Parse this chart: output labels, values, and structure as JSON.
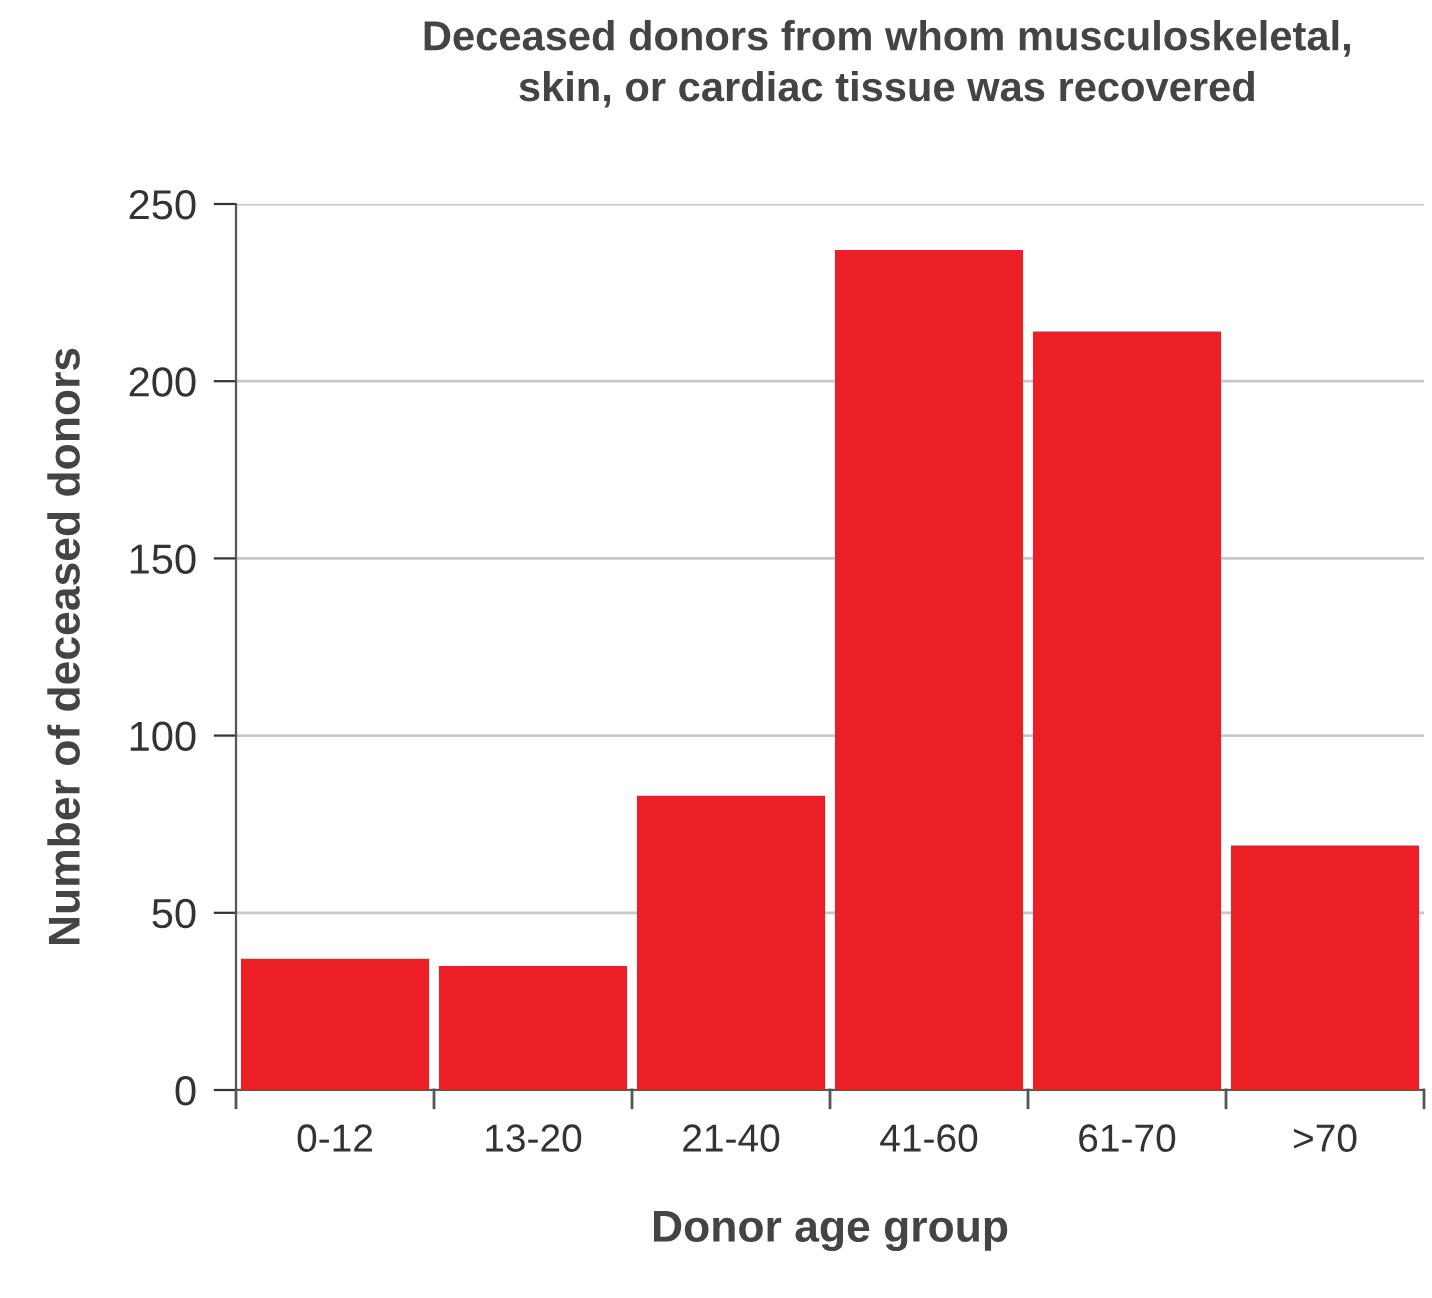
{
  "chart_data": {
    "type": "bar",
    "title": "Deceased donors from whom musculoskeletal,\nskin, or cardiac tissue was recovered",
    "xlabel": "Donor age group",
    "ylabel": "Number of deceased donors",
    "categories": [
      "0-12",
      "13-20",
      "21-40",
      "41-60",
      "61-70",
      ">70"
    ],
    "values": [
      37,
      35,
      83,
      237,
      214,
      69
    ],
    "color": "#ec1f27",
    "ylim": [
      0,
      250
    ],
    "yticks": [
      0,
      50,
      100,
      150,
      200,
      250
    ],
    "grid": "y",
    "legend": false
  }
}
